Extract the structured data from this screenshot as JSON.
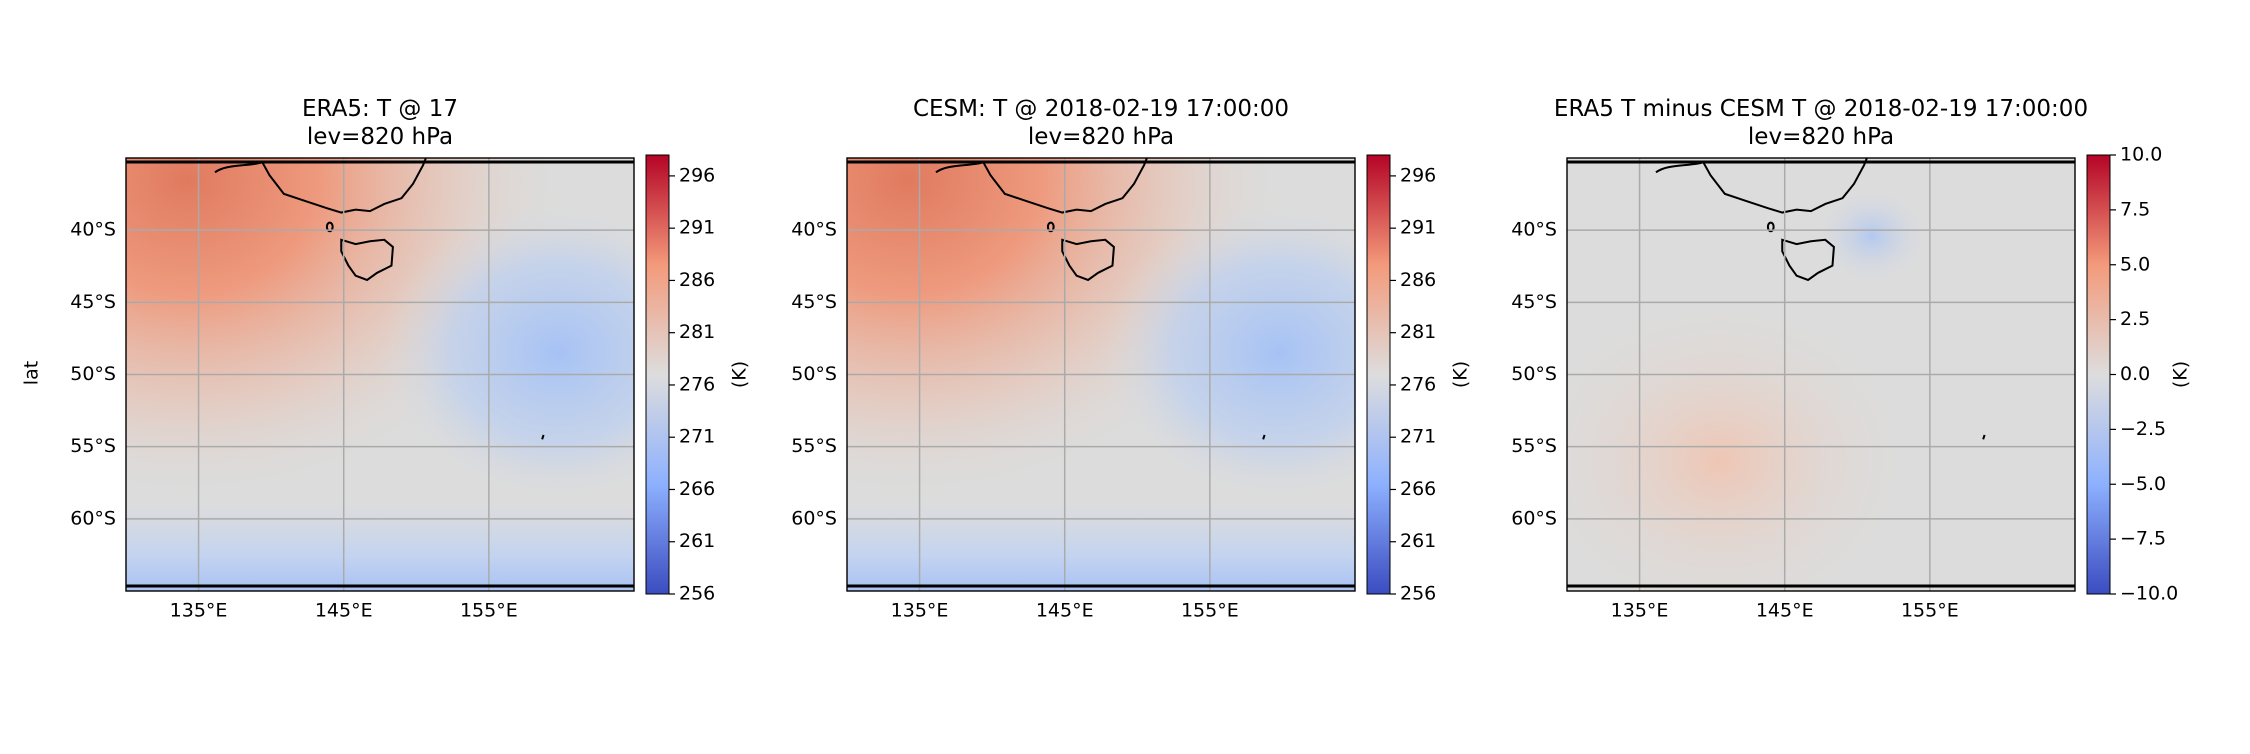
{
  "map": {
    "xlim": [
      130,
      165
    ],
    "ylim": [
      -65,
      -35
    ],
    "xticks": [
      {
        "value": 135,
        "label": "135°E"
      },
      {
        "value": 145,
        "label": "145°E"
      },
      {
        "value": 155,
        "label": "155°E"
      }
    ],
    "yticks": [
      {
        "value": -40,
        "label": "40°S"
      },
      {
        "value": -45,
        "label": "45°S"
      },
      {
        "value": -50,
        "label": "50°S"
      },
      {
        "value": -55,
        "label": "55°S"
      },
      {
        "value": -60,
        "label": "60°S"
      }
    ],
    "ylabel": "lat",
    "grid": true,
    "panels": [
      {
        "title": [
          "ERA5: T @ 17",
          "lev=820 hPa"
        ],
        "colorbar": {
          "lim": [
            256,
            298
          ],
          "ticks": [
            256,
            261,
            266,
            271,
            276,
            281,
            286,
            291,
            296
          ],
          "label": "(K)"
        }
      },
      {
        "title": [
          "CESM: T @ 2018-02-19 17:00:00",
          "lev=820 hPa"
        ],
        "colorbar": {
          "lim": [
            256,
            298
          ],
          "ticks": [
            256,
            261,
            266,
            271,
            276,
            281,
            286,
            291,
            296
          ],
          "label": "(K)"
        }
      },
      {
        "title": [
          "ERA5 T minus CESM T @ 2018-02-19 17:00:00",
          "lev=820 hPa"
        ],
        "colorbar": {
          "lim": [
            -10,
            10
          ],
          "ticks": [
            {
              "value": -10,
              "label": "−10.0"
            },
            {
              "value": -7.5,
              "label": "−7.5"
            },
            {
              "value": -5,
              "label": "−5.0"
            },
            {
              "value": -2.5,
              "label": "−2.5"
            },
            {
              "value": 0,
              "label": "0.0"
            },
            {
              "value": 2.5,
              "label": "2.5"
            },
            {
              "value": 5,
              "label": "5.0"
            },
            {
              "value": 7.5,
              "label": "7.5"
            },
            {
              "value": 10,
              "label": "10.0"
            }
          ],
          "label": "(K)"
        }
      }
    ]
  }
}
